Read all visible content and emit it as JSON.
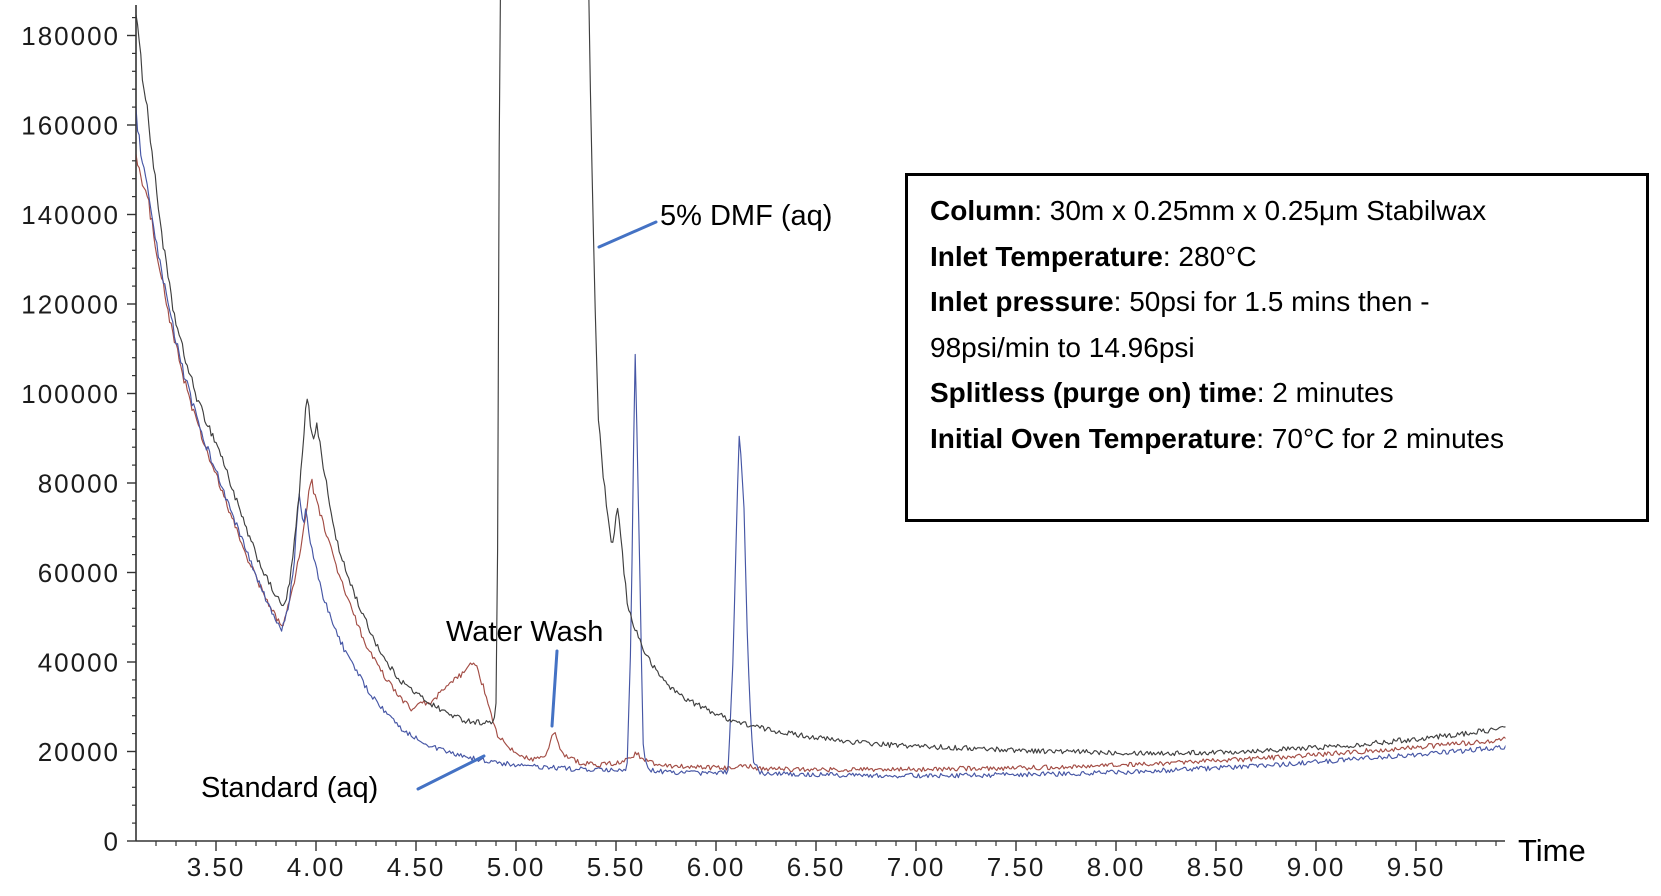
{
  "chart_data": {
    "type": "line",
    "title": "",
    "xlabel": "Time",
    "ylabel": "",
    "grid": false,
    "legend_position": "none",
    "x_axis": {
      "range": [
        3.1,
        9.97
      ],
      "major_tick_interval": 0.5,
      "minor_tick_interval": 0.1,
      "tick_values": [
        3.5,
        4.0,
        4.5,
        5.0,
        5.5,
        6.0,
        6.5,
        7.0,
        7.5,
        8.0,
        8.5,
        9.0,
        9.5
      ],
      "tick_labels": [
        "3.50",
        "4.00",
        "4.50",
        "5.00",
        "5.50",
        "6.00",
        "6.50",
        "7.00",
        "7.50",
        "8.00",
        "8.50",
        "9.00",
        "9.50"
      ]
    },
    "y_axis": {
      "range": [
        0,
        188000
      ],
      "major_tick_interval": 20000,
      "minor_tick_interval": 4000,
      "tick_values": [
        0,
        20000,
        40000,
        60000,
        80000,
        100000,
        120000,
        140000,
        160000,
        180000
      ],
      "tick_labels": [
        "0",
        "20000",
        "40000",
        "60000",
        "80000",
        "100000",
        "120000",
        "140000",
        "160000",
        "180000"
      ]
    },
    "series": [
      {
        "name": "5% DMF (aq)",
        "color": "#3f3f3f",
        "note": "solvent peak clipped off-scale between ~4.92 and ~5.36 min",
        "points": [
          [
            3.1,
            186000
          ],
          [
            3.115,
            178000
          ],
          [
            3.13,
            172000
          ],
          [
            3.15,
            166000
          ],
          [
            3.17,
            158000
          ],
          [
            3.2,
            146000
          ],
          [
            3.24,
            132000
          ],
          [
            3.28,
            120000
          ],
          [
            3.32,
            112000
          ],
          [
            3.37,
            104000
          ],
          [
            3.42,
            97000
          ],
          [
            3.47,
            92000
          ],
          [
            3.52,
            87000
          ],
          [
            3.58,
            79000
          ],
          [
            3.64,
            71000
          ],
          [
            3.7,
            64000
          ],
          [
            3.76,
            58000
          ],
          [
            3.81,
            54000
          ],
          [
            3.84,
            52000
          ],
          [
            3.87,
            58000
          ],
          [
            3.9,
            70000
          ],
          [
            3.93,
            85000
          ],
          [
            3.955,
            100000
          ],
          [
            3.975,
            92000
          ],
          [
            3.99,
            90500
          ],
          [
            4.005,
            93000
          ],
          [
            4.04,
            83000
          ],
          [
            4.08,
            72000
          ],
          [
            4.12,
            64000
          ],
          [
            4.17,
            58000
          ],
          [
            4.22,
            52000
          ],
          [
            4.28,
            46000
          ],
          [
            4.35,
            40000
          ],
          [
            4.42,
            36000
          ],
          [
            4.5,
            33000
          ],
          [
            4.58,
            30500
          ],
          [
            4.66,
            28500
          ],
          [
            4.74,
            27000
          ],
          [
            4.82,
            26500
          ],
          [
            4.89,
            26500
          ],
          [
            4.905,
            32000
          ],
          [
            4.92,
            200000
          ],
          [
            5.36,
            200000
          ],
          [
            5.375,
            160000
          ],
          [
            5.39,
            130000
          ],
          [
            5.41,
            95000
          ],
          [
            5.44,
            80000
          ],
          [
            5.465,
            70000
          ],
          [
            5.48,
            64500
          ],
          [
            5.505,
            75000
          ],
          [
            5.52,
            70000
          ],
          [
            5.54,
            60000
          ],
          [
            5.56,
            52000
          ],
          [
            5.6,
            47000
          ],
          [
            5.645,
            42000
          ],
          [
            5.7,
            38000
          ],
          [
            5.78,
            34000
          ],
          [
            5.86,
            31500
          ],
          [
            5.95,
            29500
          ],
          [
            6.05,
            27500
          ],
          [
            6.12,
            26400
          ],
          [
            6.25,
            25000
          ],
          [
            6.4,
            23800
          ],
          [
            6.6,
            22500
          ],
          [
            6.85,
            21500
          ],
          [
            7.1,
            21000
          ],
          [
            7.4,
            20500
          ],
          [
            7.7,
            20000
          ],
          [
            8.0,
            19800
          ],
          [
            8.3,
            19600
          ],
          [
            8.6,
            20000
          ],
          [
            8.9,
            20600
          ],
          [
            9.2,
            21500
          ],
          [
            9.5,
            22800
          ],
          [
            9.75,
            24000
          ],
          [
            9.9,
            25000
          ],
          [
            9.97,
            25500
          ]
        ]
      },
      {
        "name": "Water Wash",
        "color": "#a34d45",
        "points": [
          [
            3.1,
            154000
          ],
          [
            3.13,
            147000
          ],
          [
            3.16,
            143000
          ],
          [
            3.2,
            133000
          ],
          [
            3.24,
            123000
          ],
          [
            3.28,
            114000
          ],
          [
            3.33,
            105000
          ],
          [
            3.38,
            97000
          ],
          [
            3.43,
            90000
          ],
          [
            3.48,
            84000
          ],
          [
            3.53,
            78000
          ],
          [
            3.59,
            71000
          ],
          [
            3.65,
            64000
          ],
          [
            3.71,
            58000
          ],
          [
            3.76,
            53000
          ],
          [
            3.8,
            50000
          ],
          [
            3.83,
            48000
          ],
          [
            3.86,
            52000
          ],
          [
            3.9,
            60000
          ],
          [
            3.94,
            70000
          ],
          [
            3.975,
            81000
          ],
          [
            4.0,
            76000
          ],
          [
            4.03,
            72000
          ],
          [
            4.07,
            66000
          ],
          [
            4.11,
            60000
          ],
          [
            4.16,
            54000
          ],
          [
            4.21,
            48000
          ],
          [
            4.27,
            42000
          ],
          [
            4.34,
            37000
          ],
          [
            4.41,
            32500
          ],
          [
            4.48,
            29500
          ],
          [
            4.55,
            31000
          ],
          [
            4.58,
            30800
          ],
          [
            4.62,
            33000
          ],
          [
            4.67,
            35000
          ],
          [
            4.72,
            37000
          ],
          [
            4.76,
            38500
          ],
          [
            4.785,
            40000
          ],
          [
            4.81,
            38000
          ],
          [
            4.84,
            34000
          ],
          [
            4.875,
            28000
          ],
          [
            4.91,
            23500
          ],
          [
            4.97,
            20500
          ],
          [
            5.03,
            19000
          ],
          [
            5.09,
            18300
          ],
          [
            5.15,
            19000
          ],
          [
            5.19,
            24500
          ],
          [
            5.23,
            19500
          ],
          [
            5.32,
            17500
          ],
          [
            5.42,
            17000
          ],
          [
            5.52,
            17500
          ],
          [
            5.6,
            19500
          ],
          [
            5.67,
            17500
          ],
          [
            5.78,
            16800
          ],
          [
            5.92,
            16400
          ],
          [
            6.05,
            16300
          ],
          [
            6.13,
            17000
          ],
          [
            6.22,
            16200
          ],
          [
            6.4,
            16000
          ],
          [
            6.7,
            15900
          ],
          [
            7.0,
            16000
          ],
          [
            7.3,
            16200
          ],
          [
            7.6,
            16400
          ],
          [
            7.9,
            16800
          ],
          [
            8.2,
            17300
          ],
          [
            8.5,
            17900
          ],
          [
            8.8,
            18700
          ],
          [
            9.1,
            19600
          ],
          [
            9.4,
            20600
          ],
          [
            9.65,
            21500
          ],
          [
            9.85,
            22300
          ],
          [
            9.97,
            22800
          ]
        ]
      },
      {
        "name": "Standard (aq)",
        "color": "#4656a5",
        "points": [
          [
            3.1,
            163000
          ],
          [
            3.12,
            155000
          ],
          [
            3.15,
            147000
          ],
          [
            3.18,
            139000
          ],
          [
            3.21,
            131000
          ],
          [
            3.25,
            122000
          ],
          [
            3.29,
            114000
          ],
          [
            3.33,
            106000
          ],
          [
            3.38,
            98000
          ],
          [
            3.43,
            91000
          ],
          [
            3.48,
            85000
          ],
          [
            3.53,
            79000
          ],
          [
            3.59,
            72000
          ],
          [
            3.65,
            65000
          ],
          [
            3.71,
            58000
          ],
          [
            3.76,
            53000
          ],
          [
            3.8,
            49000
          ],
          [
            3.83,
            47000
          ],
          [
            3.86,
            52000
          ],
          [
            3.89,
            62000
          ],
          [
            3.915,
            78000
          ],
          [
            3.935,
            70000
          ],
          [
            3.95,
            74500
          ],
          [
            3.97,
            67000
          ],
          [
            4.0,
            61000
          ],
          [
            4.04,
            54000
          ],
          [
            4.09,
            48000
          ],
          [
            4.14,
            43000
          ],
          [
            4.2,
            38000
          ],
          [
            4.27,
            33000
          ],
          [
            4.35,
            28500
          ],
          [
            4.43,
            25000
          ],
          [
            4.52,
            22500
          ],
          [
            4.61,
            20500
          ],
          [
            4.7,
            19300
          ],
          [
            4.8,
            18300
          ],
          [
            4.9,
            17500
          ],
          [
            5.0,
            17000
          ],
          [
            5.12,
            16500
          ],
          [
            5.25,
            16200
          ],
          [
            5.38,
            15900
          ],
          [
            5.5,
            15700
          ],
          [
            5.555,
            15800
          ],
          [
            5.575,
            45000
          ],
          [
            5.595,
            111000
          ],
          [
            5.615,
            70000
          ],
          [
            5.635,
            22000
          ],
          [
            5.655,
            16000
          ],
          [
            5.75,
            15400
          ],
          [
            5.88,
            15200
          ],
          [
            6.0,
            15200
          ],
          [
            6.06,
            15500
          ],
          [
            6.085,
            40000
          ],
          [
            6.115,
            91500
          ],
          [
            6.14,
            75000
          ],
          [
            6.16,
            40000
          ],
          [
            6.185,
            18000
          ],
          [
            6.22,
            15200
          ],
          [
            6.4,
            14900
          ],
          [
            6.7,
            14700
          ],
          [
            7.0,
            14600
          ],
          [
            7.3,
            14700
          ],
          [
            7.6,
            14900
          ],
          [
            7.9,
            15200
          ],
          [
            8.2,
            15700
          ],
          [
            8.5,
            16300
          ],
          [
            8.8,
            17000
          ],
          [
            9.1,
            18000
          ],
          [
            9.4,
            19000
          ],
          [
            9.65,
            19800
          ],
          [
            9.85,
            20600
          ],
          [
            9.97,
            21200
          ]
        ]
      }
    ],
    "annotations": [
      {
        "text": "5% DMF (aq)",
        "series": "5% DMF (aq)",
        "target_time": 5.4
      },
      {
        "text": "Water Wash",
        "series": "Water Wash",
        "target_time": 5.19
      },
      {
        "text": "Standard (aq)",
        "series": "Standard (aq)",
        "target_time": 4.84
      }
    ],
    "annotation_arrow_color": "#4472c4"
  },
  "info_box": {
    "lines": [
      {
        "key": "Column",
        "value": ": 30m x 0.25mm x 0.25μm Stabilwax"
      },
      {
        "key": "Inlet Temperature",
        "value": ": 280°C"
      },
      {
        "key": "Inlet pressure",
        "value": ": 50psi for 1.5 mins then -"
      },
      {
        "key": "",
        "value": "98psi/min to 14.96psi"
      },
      {
        "key": "Splitless (purge on) time",
        "value": ": 2 minutes"
      },
      {
        "key": "Initial Oven Temperature",
        "value": ": 70°C for 2 minutes"
      }
    ]
  }
}
